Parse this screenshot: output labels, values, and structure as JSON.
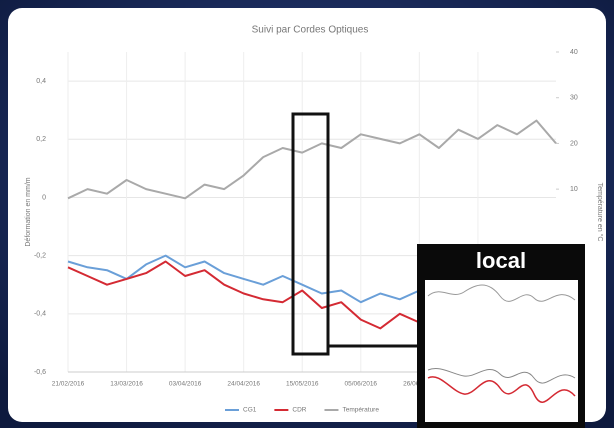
{
  "chart_data": {
    "type": "line",
    "title": "Suivi par Cordes Optiques",
    "y_label": "Déformation en mm/m",
    "y2_label": "Température en °C",
    "x": [
      "21/02/2016",
      "28/02/2016",
      "06/03/2016",
      "13/03/2016",
      "20/03/2016",
      "27/03/2016",
      "03/04/2016",
      "10/04/2016",
      "17/04/2016",
      "24/04/2016",
      "01/05/2016",
      "08/05/2016",
      "15/05/2016",
      "22/05/2016",
      "29/05/2016",
      "05/06/2016",
      "12/06/2016",
      "19/06/2016",
      "26/06/2016",
      "03/07/2016",
      "10/07/2016",
      "17/07/2016",
      "24/07/2016",
      "31/07/2016",
      "07/08/2016",
      "14/08/2016"
    ],
    "xticks": [
      "21/02/2016",
      "13/03/2016",
      "03/04/2016",
      "24/04/2016",
      "15/05/2016",
      "05/06/2016",
      "26/06/2016",
      "17/07/2016"
    ],
    "ylim": [
      -0.6,
      0.5
    ],
    "yticks": [
      {
        "value": 0.4,
        "label": "0,4"
      },
      {
        "value": 0.2,
        "label": "0,2"
      },
      0,
      {
        "value": -0.2,
        "label": "-0,2"
      },
      {
        "value": -0.4,
        "label": "-0,4"
      },
      {
        "value": -0.6,
        "label": "-0,6"
      }
    ],
    "y2lim": [
      -30,
      40
    ],
    "y2ticks": [
      40,
      30,
      20,
      10
    ],
    "grid": true,
    "legend": "bottom",
    "series": [
      {
        "name": "CG1",
        "color": "#6a9fd8",
        "values": [
          -0.22,
          -0.24,
          -0.25,
          -0.28,
          -0.23,
          -0.2,
          -0.24,
          -0.22,
          -0.26,
          -0.28,
          -0.3,
          -0.27,
          -0.3,
          -0.33,
          -0.32,
          -0.36,
          -0.33,
          -0.35,
          -0.32,
          -0.3,
          -0.33,
          -0.31,
          -0.3,
          -0.29,
          -0.31,
          -0.3
        ]
      },
      {
        "name": "CDR",
        "color": "#d42a33",
        "values": [
          -0.24,
          -0.27,
          -0.3,
          -0.28,
          -0.26,
          -0.22,
          -0.27,
          -0.25,
          -0.3,
          -0.33,
          -0.35,
          -0.36,
          -0.32,
          -0.38,
          -0.36,
          -0.42,
          -0.45,
          -0.4,
          -0.43,
          -0.38,
          -0.41,
          -0.36,
          -0.34,
          -0.3,
          -0.33,
          -0.32
        ]
      },
      {
        "name": "Température",
        "color": "#a9a9a9",
        "axis": "y2",
        "values": [
          8,
          10,
          9,
          12,
          10,
          9,
          8,
          11,
          10,
          13,
          17,
          19,
          18,
          20,
          19,
          22,
          21,
          20,
          22,
          19,
          23,
          21,
          24,
          22,
          25,
          20
        ]
      }
    ],
    "inset_title": "local"
  }
}
